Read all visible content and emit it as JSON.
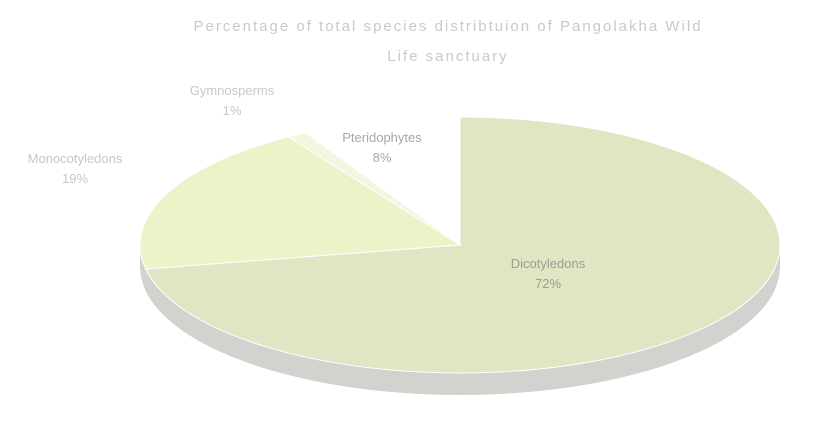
{
  "chart_data": {
    "type": "pie",
    "title_lines": [
      "Percentage of total species distribtuion of Pangolakha Wild",
      "Life sanctuary"
    ],
    "slices": [
      {
        "label": "Dicotyledons",
        "value": 72,
        "value_label": "72%",
        "color": "#dfe6c4"
      },
      {
        "label": "Monocotyledons",
        "value": 19,
        "value_label": "19%",
        "color": "#edf2c9"
      },
      {
        "label": "Gymnosperms",
        "value": 1,
        "value_label": "1%",
        "color": "#f4f6df"
      },
      {
        "label": "Pteridophytes",
        "value": 8,
        "value_label": "8%",
        "color": "#ffffff"
      }
    ]
  }
}
